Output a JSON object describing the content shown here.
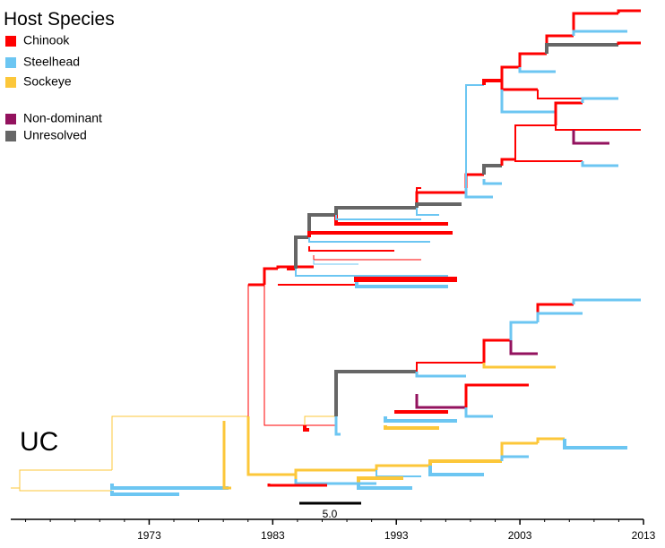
{
  "legend": {
    "title": "Host Species",
    "items": [
      {
        "label": "Chinook",
        "color": "#ff0000"
      },
      {
        "label": "Steelhead",
        "color": "#6cc6f2"
      },
      {
        "label": "Sockeye",
        "color": "#fcc73a"
      },
      {
        "label": "Non-dominant",
        "color": "#93125e"
      },
      {
        "label": "Unresolved",
        "color": "#666666"
      }
    ]
  },
  "clade_label": "UC",
  "scale_bar": {
    "label": "5.0"
  },
  "axis": {
    "xlim": [
      1961.8,
      2013
    ],
    "ticks": [
      1973,
      1983,
      1993,
      2003,
      2013
    ]
  }
}
